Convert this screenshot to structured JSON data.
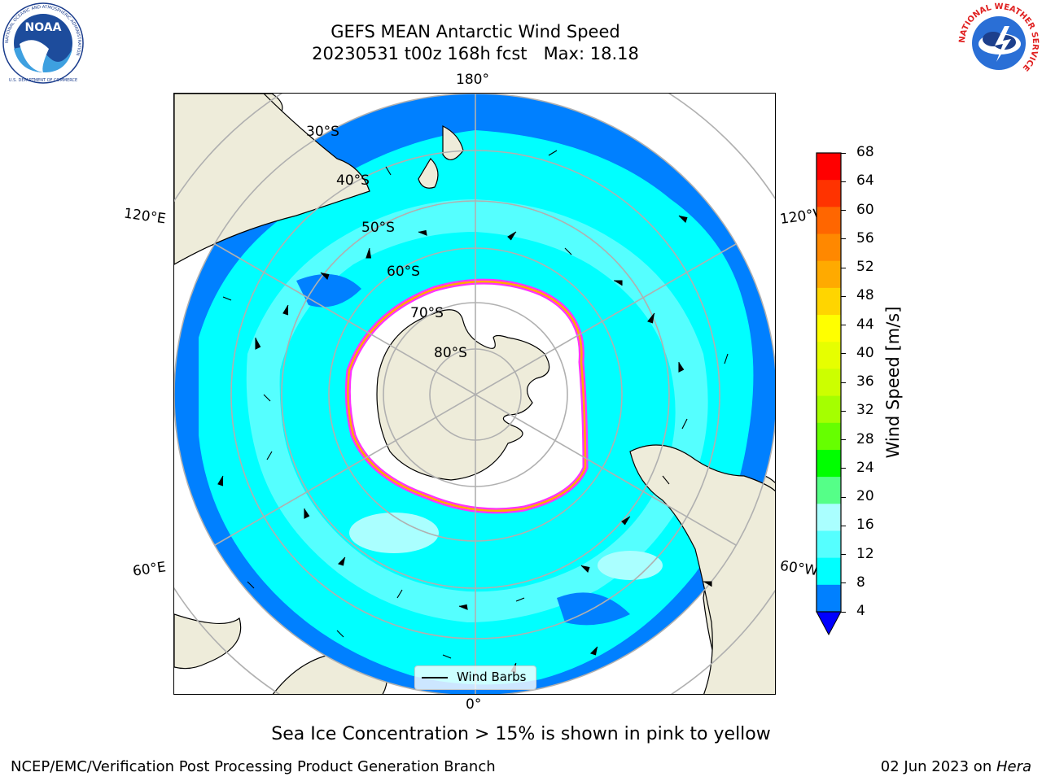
{
  "header": {
    "title_line1": "GEFS MEAN Antarctic Wind Speed",
    "title_line2": "20230531 t00z 168h fcst   Max: 18.18"
  },
  "logos": {
    "noaa_text": "NOAA",
    "noaa_ring_text": "NATIONAL OCEANIC AND ATMOSPHERIC ADMINISTRATION",
    "noaa_bottom_text": "U.S. DEPARTMENT OF COMMERCE",
    "nws_ring_text": "NATIONAL WEATHER SERVICE"
  },
  "map": {
    "longitude_labels": {
      "top": "180°",
      "bottom": "0°",
      "left_upper": "120°E",
      "left_lower": "60°E",
      "right_upper": "120°W",
      "right_lower": "60°W"
    },
    "latitude_labels": [
      "30°S",
      "40°S",
      "50°S",
      "60°S",
      "70°S",
      "80°S"
    ],
    "legend_label": "Wind Barbs",
    "colors": {
      "land": "#eeecda",
      "ice": "#ffffff",
      "ice_edge": [
        "#ff33ff",
        "#ffff00"
      ],
      "grid": "#b0b0b0"
    }
  },
  "colorbar": {
    "title": "Wind Speed [m/s]",
    "ticks": [
      "68",
      "64",
      "60",
      "56",
      "52",
      "48",
      "44",
      "40",
      "36",
      "32",
      "28",
      "24",
      "20",
      "16",
      "12",
      "8",
      "4"
    ],
    "colors": [
      "#ff0000",
      "#ff3300",
      "#ff6600",
      "#ff8800",
      "#ffaa00",
      "#ffd500",
      "#ffff00",
      "#e6ff00",
      "#ccff00",
      "#a5ff00",
      "#66ff00",
      "#00ff00",
      "#55ff88",
      "#aaffff",
      "#55ffff",
      "#00ffff",
      "#0080ff"
    ],
    "extend_color": "#0000ff"
  },
  "footer": {
    "subtitle": "Sea Ice Concentration > 15% is shown in pink to yellow",
    "left": "NCEP/EMC/Verification Post Processing Product Generation Branch",
    "date": "02 Jun 2023 on ",
    "machine": "Hera"
  }
}
